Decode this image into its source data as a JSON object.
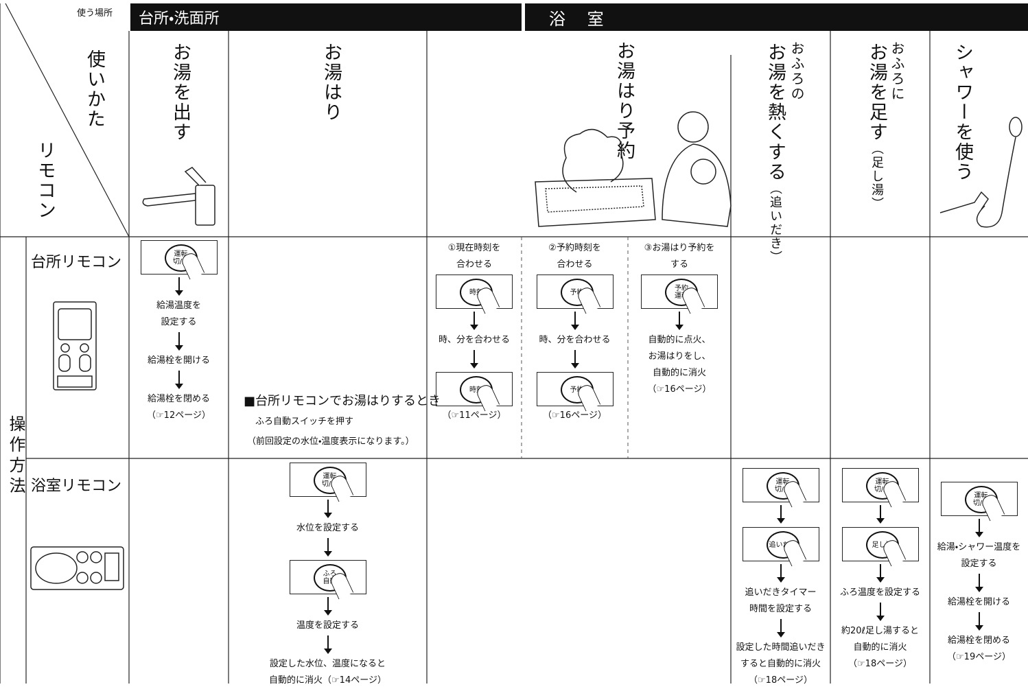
{
  "header": {
    "place_label": "使う場所",
    "kitchen": "台所・洗面所",
    "bath": "浴 室"
  },
  "corner": {
    "usage": "使いかた",
    "remote": "リモコン"
  },
  "columns": [
    {
      "title": "お湯を出す"
    },
    {
      "title": "お湯はり"
    },
    {
      "title": "お湯はり予約"
    },
    {
      "pre": "おふろの",
      "title": "お湯を熱くする",
      "note": "（追いだき）"
    },
    {
      "pre": "おふろに",
      "title": "お湯を足す",
      "note": "（足し湯）"
    },
    {
      "title": "シャワーを使う"
    }
  ],
  "side_label": "操作方法",
  "rows": [
    {
      "label": "台所リモコン"
    },
    {
      "label": "浴室リモコン"
    }
  ],
  "kitchen": {
    "hot_water": {
      "items": [
        {
          "button": [
            "運転",
            "切/入"
          ]
        },
        {
          "text": [
            "給湯温度を",
            "設定する"
          ]
        },
        {
          "text": [
            "給湯栓を開ける"
          ]
        },
        {
          "text": [
            "給湯栓を閉める"
          ]
        }
      ],
      "ref": "（☞12ページ）"
    },
    "fill_note": {
      "heading": "■台所リモコンでお湯はりするとき",
      "lines": [
        "ふろ自動スイッチを押す",
        "（前回設定の水位・温度表示になります。）"
      ]
    },
    "timer": [
      {
        "heading": [
          "①現在時刻を",
          "合わせる"
        ],
        "items": [
          {
            "button": [
              "時刻"
            ]
          },
          {
            "text": [
              "時、分を合わせる"
            ]
          },
          {
            "button": [
              "時刻"
            ]
          }
        ],
        "ref": "（☞11ページ）"
      },
      {
        "heading": [
          "②予約時刻を",
          "合わせる"
        ],
        "items": [
          {
            "button": [
              "予約"
            ]
          },
          {
            "text": [
              "時、分を合わせる"
            ]
          },
          {
            "button": [
              "予約"
            ]
          }
        ],
        "ref": "（☞16ページ）"
      },
      {
        "heading": [
          "③お湯はり予約を",
          "する"
        ],
        "items": [
          {
            "button": [
              "予約",
              "運転"
            ]
          },
          {
            "text": [
              "自動的に点火、",
              "お湯はりをし、",
              "自動的に消火"
            ]
          }
        ],
        "ref": "（☞16ページ）"
      }
    ]
  },
  "bath": {
    "fill": {
      "items": [
        {
          "button": [
            "運転",
            "切/入"
          ]
        },
        {
          "text": [
            "水位を設定する"
          ]
        },
        {
          "button": [
            "ふろ",
            "自動"
          ]
        },
        {
          "text": [
            "温度を設定する"
          ]
        },
        {
          "text": [
            "設定した水位、温度になると",
            "自動的に消火（☞14ページ）"
          ]
        }
      ]
    },
    "reheat": {
      "items": [
        {
          "button": [
            "運転",
            "切/入"
          ]
        },
        {
          "button": [
            "追いだき"
          ]
        },
        {
          "text": [
            "追いだきタイマー",
            "時間を設定する"
          ]
        },
        {
          "text": [
            "設定した時間追いだき",
            "すると自動的に消火"
          ]
        }
      ],
      "ref": "（☞18ページ）"
    },
    "add_hot": {
      "items": [
        {
          "button": [
            "運転",
            "切/入"
          ]
        },
        {
          "button": [
            "足し湯"
          ]
        },
        {
          "text": [
            "ふろ温度を設定する"
          ]
        },
        {
          "text": [
            "約20ℓ足し湯すると",
            "自動的に消火"
          ]
        }
      ],
      "ref": "（☞18ページ）"
    },
    "shower": {
      "items": [
        {
          "button": [
            "運転",
            "切/入"
          ]
        },
        {
          "text": [
            "給湯・シャワー温度を",
            "設定する"
          ]
        },
        {
          "text": [
            "給湯栓を開ける"
          ]
        },
        {
          "text": [
            "給湯栓を閉める"
          ]
        }
      ],
      "ref": "（☞19ページ）"
    }
  }
}
